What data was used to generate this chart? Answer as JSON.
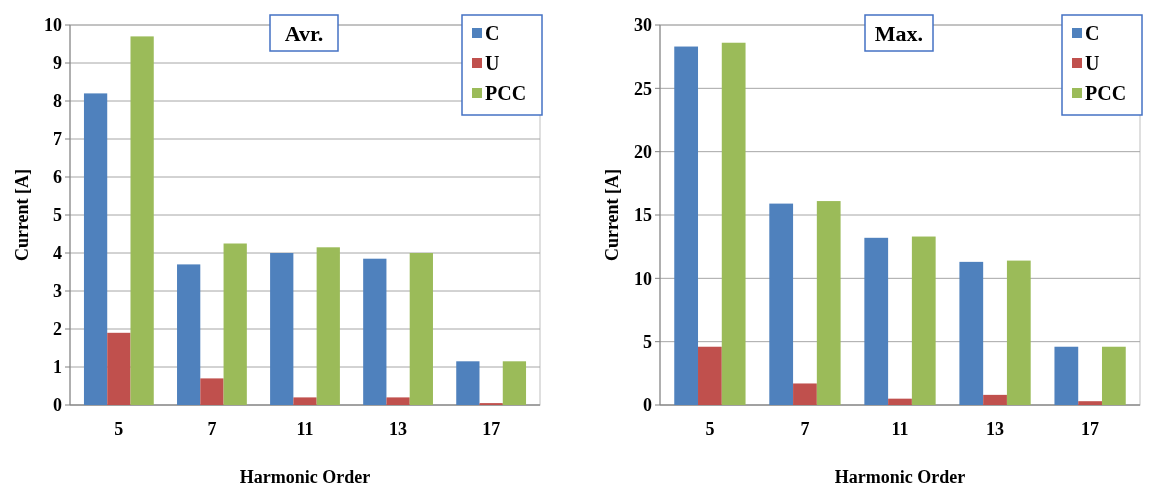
{
  "chart_data": [
    {
      "type": "bar",
      "title": "Avr.",
      "xlabel": "Harmonic Order",
      "ylabel": "Current [A]",
      "categories": [
        "5",
        "7",
        "11",
        "13",
        "17"
      ],
      "ylim": [
        0,
        10
      ],
      "yticks": [
        0,
        1,
        2,
        3,
        4,
        5,
        6,
        7,
        8,
        9,
        10
      ],
      "grid": "y",
      "legend": "top right",
      "series": [
        {
          "name": "C",
          "color": "#4f81bd",
          "values": [
            8.2,
            3.7,
            4.0,
            3.85,
            1.15
          ]
        },
        {
          "name": "U",
          "color": "#c0504d",
          "values": [
            1.9,
            0.7,
            0.2,
            0.2,
            0.05
          ]
        },
        {
          "name": "PCC",
          "color": "#9bbb59",
          "values": [
            9.7,
            4.25,
            4.15,
            4.0,
            1.15
          ]
        }
      ]
    },
    {
      "type": "bar",
      "title": "Max.",
      "xlabel": "Harmonic Order",
      "ylabel": "Current [A]",
      "categories": [
        "5",
        "7",
        "11",
        "13",
        "17"
      ],
      "ylim": [
        0,
        30
      ],
      "yticks": [
        0,
        5,
        10,
        15,
        20,
        25,
        30
      ],
      "grid": "y",
      "legend": "top right",
      "series": [
        {
          "name": "C",
          "color": "#4f81bd",
          "values": [
            28.3,
            15.9,
            13.2,
            11.3,
            4.6
          ]
        },
        {
          "name": "U",
          "color": "#c0504d",
          "values": [
            4.6,
            1.7,
            0.5,
            0.8,
            0.3
          ]
        },
        {
          "name": "PCC",
          "color": "#9bbb59",
          "values": [
            28.6,
            16.1,
            13.3,
            11.4,
            4.6
          ]
        }
      ]
    }
  ]
}
